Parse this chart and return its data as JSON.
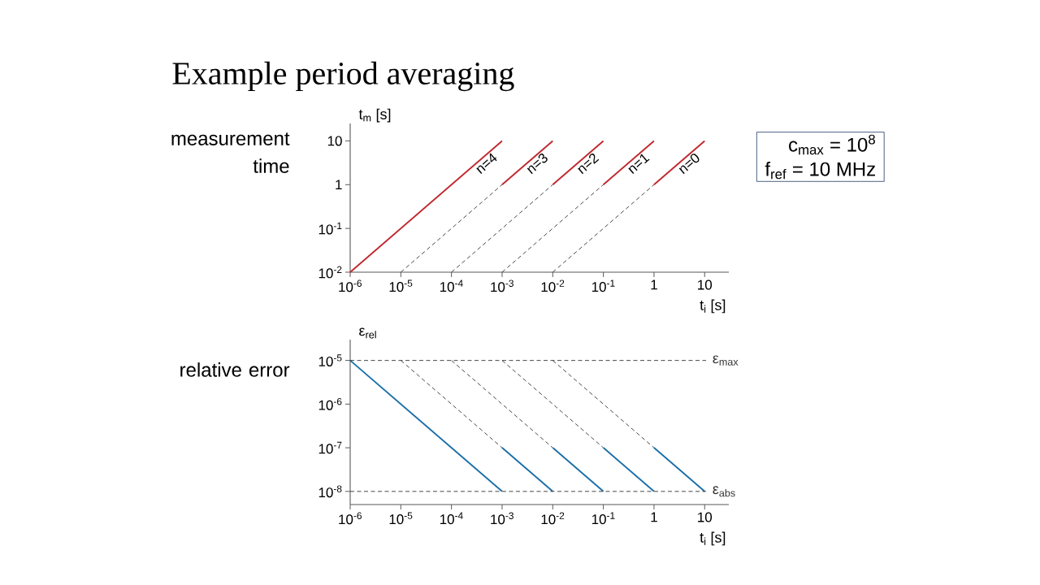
{
  "chart_data": [
    {
      "type": "line",
      "title": "Example period averaging",
      "xlabel": "t$_{i}$ [s]",
      "ylabel": "t$_{m}$ [s]",
      "log": "xy",
      "xlim": [
        1e-06,
        30
      ],
      "ylim": [
        0.01,
        25
      ],
      "xticks": [
        {
          "value": 1e-06,
          "label": "10$^{-6}$"
        },
        {
          "value": 1e-05,
          "label": "10$^{-5}$"
        },
        {
          "value": 0.0001,
          "label": "10$^{-4}$"
        },
        {
          "value": 0.001,
          "label": "10$^{-3}$"
        },
        {
          "value": 0.01,
          "label": "10$^{-2}$"
        },
        {
          "value": 0.1,
          "label": "10$^{-1}$"
        },
        1,
        10
      ],
      "yticks": [
        {
          "value": 0.01,
          "label": "10$^{-2}$"
        },
        {
          "value": 0.1,
          "label": "10$^{-1}$"
        },
        1,
        10
      ],
      "series": [
        {
          "color": "#c0272d",
          "line_style": "solid",
          "x": [
            1e-06,
            0.001
          ],
          "values": [
            0.01,
            10
          ]
        },
        {
          "color": "#333333",
          "line_style": "dashed",
          "x": [
            1e-05,
            0.001
          ],
          "values": [
            0.01,
            1
          ]
        },
        {
          "color": "#c0272d",
          "line_style": "solid",
          "x": [
            0.001,
            0.01
          ],
          "values": [
            1,
            10
          ]
        },
        {
          "color": "#333333",
          "line_style": "dashed",
          "x": [
            0.0001,
            0.01
          ],
          "values": [
            0.01,
            1
          ]
        },
        {
          "color": "#c0272d",
          "line_style": "solid",
          "x": [
            0.01,
            0.1
          ],
          "values": [
            1,
            10
          ]
        },
        {
          "color": "#333333",
          "line_style": "dashed",
          "x": [
            0.001,
            0.1
          ],
          "values": [
            0.01,
            1
          ]
        },
        {
          "color": "#c0272d",
          "line_style": "solid",
          "x": [
            0.1,
            1
          ],
          "values": [
            1,
            10
          ]
        },
        {
          "color": "#333333",
          "line_style": "dashed",
          "x": [
            0.01,
            1
          ],
          "values": [
            0.01,
            1
          ]
        },
        {
          "color": "#c0272d",
          "line_style": "solid",
          "x": [
            1,
            10
          ],
          "values": [
            1,
            10
          ]
        }
      ],
      "annotations": [
        "measurement time",
        "c$_{max}$ = 10$^{8}$",
        "f$_{ref}$ = 10 MHz",
        {
          "text": "n=4",
          "x": 0.0004,
          "y": 4
        },
        {
          "text": "n=3",
          "x": 0.004,
          "y": 4
        },
        {
          "text": "n=2",
          "x": 0.04,
          "y": 4
        },
        {
          "text": "n=1",
          "x": 0.4,
          "y": 4
        },
        {
          "text": "n=0",
          "x": 4,
          "y": 4
        }
      ]
    },
    {
      "type": "line",
      "xlabel": "t$_{i}$ [s]",
      "ylabel": "ε$_{rel}$",
      "log": "xy",
      "xlim": [
        1e-06,
        30
      ],
      "ylim": [
        5e-09,
        3e-05
      ],
      "xticks": [
        {
          "value": 1e-06,
          "label": "10$^{-6}$"
        },
        {
          "value": 1e-05,
          "label": "10$^{-5}$"
        },
        {
          "value": 0.0001,
          "label": "10$^{-4}$"
        },
        {
          "value": 0.001,
          "label": "10$^{-3}$"
        },
        {
          "value": 0.01,
          "label": "10$^{-2}$"
        },
        {
          "value": 0.1,
          "label": "10$^{-1}$"
        },
        1,
        10
      ],
      "yticks": [
        {
          "value": 1e-08,
          "label": "10$^{-8}$"
        },
        {
          "value": 1e-07,
          "label": "10$^{-7}$"
        },
        {
          "value": 1e-06,
          "label": "10$^{-6}$"
        },
        {
          "value": 1e-05,
          "label": "10$^{-5}$"
        }
      ],
      "series": [
        {
          "color": "#1a6fa8",
          "line_style": "solid",
          "x": [
            1e-06,
            0.001
          ],
          "values": [
            1e-05,
            1e-08
          ]
        },
        {
          "color": "#333333",
          "line_style": "dashed",
          "x": [
            1e-05,
            0.001
          ],
          "values": [
            1e-05,
            1e-07
          ]
        },
        {
          "color": "#1a6fa8",
          "line_style": "solid",
          "x": [
            0.001,
            0.01
          ],
          "values": [
            1e-07,
            1e-08
          ]
        },
        {
          "color": "#333333",
          "line_style": "dashed",
          "x": [
            0.0001,
            0.01
          ],
          "values": [
            1e-05,
            1e-07
          ]
        },
        {
          "color": "#1a6fa8",
          "line_style": "solid",
          "x": [
            0.01,
            0.1
          ],
          "values": [
            1e-07,
            1e-08
          ]
        },
        {
          "color": "#333333",
          "line_style": "dashed",
          "x": [
            0.001,
            0.1
          ],
          "values": [
            1e-05,
            1e-07
          ]
        },
        {
          "color": "#1a6fa8",
          "line_style": "solid",
          "x": [
            0.1,
            1
          ],
          "values": [
            1e-07,
            1e-08
          ]
        },
        {
          "color": "#333333",
          "line_style": "dashed",
          "x": [
            0.01,
            1
          ],
          "values": [
            1e-05,
            1e-07
          ]
        },
        {
          "color": "#1a6fa8",
          "line_style": "solid",
          "x": [
            1,
            10
          ],
          "values": [
            1e-07,
            1e-08
          ]
        }
      ],
      "ref_lines": [
        {
          "axis": "y",
          "value": 1e-05,
          "label": "ε$_{max}$",
          "color": "#333333",
          "line_style": "dashed"
        },
        {
          "axis": "y",
          "value": 1e-08,
          "label": "ε$_{abs}$",
          "color": "#333333",
          "line_style": "dashed"
        }
      ],
      "annotations": [
        "relative error"
      ]
    }
  ]
}
